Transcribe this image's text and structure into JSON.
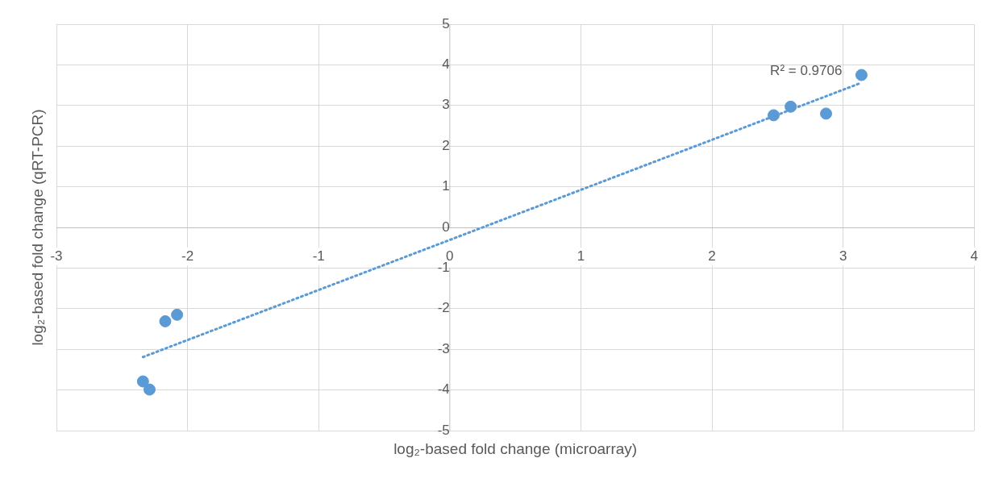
{
  "chart_data": {
    "type": "scatter",
    "xlabel": "log₂-based fold change (microarray)",
    "ylabel": "log₂-based fold change (qRT-PCR)",
    "xlim": [
      -3,
      4
    ],
    "xticks": [
      -3,
      -2,
      -1,
      0,
      1,
      2,
      3,
      4
    ],
    "ylim": [
      -5,
      5
    ],
    "yticks": [
      -5,
      -4,
      -3,
      -2,
      -1,
      0,
      1,
      2,
      3,
      4,
      5
    ],
    "grid": true,
    "legend": false,
    "marker": "circle",
    "series": [
      {
        "type": "scatter",
        "color": "#5b9bd5",
        "x": [
          -2.34,
          -2.29,
          -2.17,
          -2.08,
          2.47,
          2.6,
          2.87,
          3.14
        ],
        "values": [
          -3.79,
          -3.99,
          -2.31,
          -2.15,
          2.76,
          2.97,
          2.8,
          3.75
        ]
      },
      {
        "type": "line",
        "color": "#5b9bd5",
        "line_style": "dotted",
        "marker": "none",
        "x": [
          -2.34,
          3.14
        ],
        "values": [
          -3.19,
          3.56
        ]
      }
    ],
    "annotations": [
      "R² = 0.9706"
    ]
  }
}
